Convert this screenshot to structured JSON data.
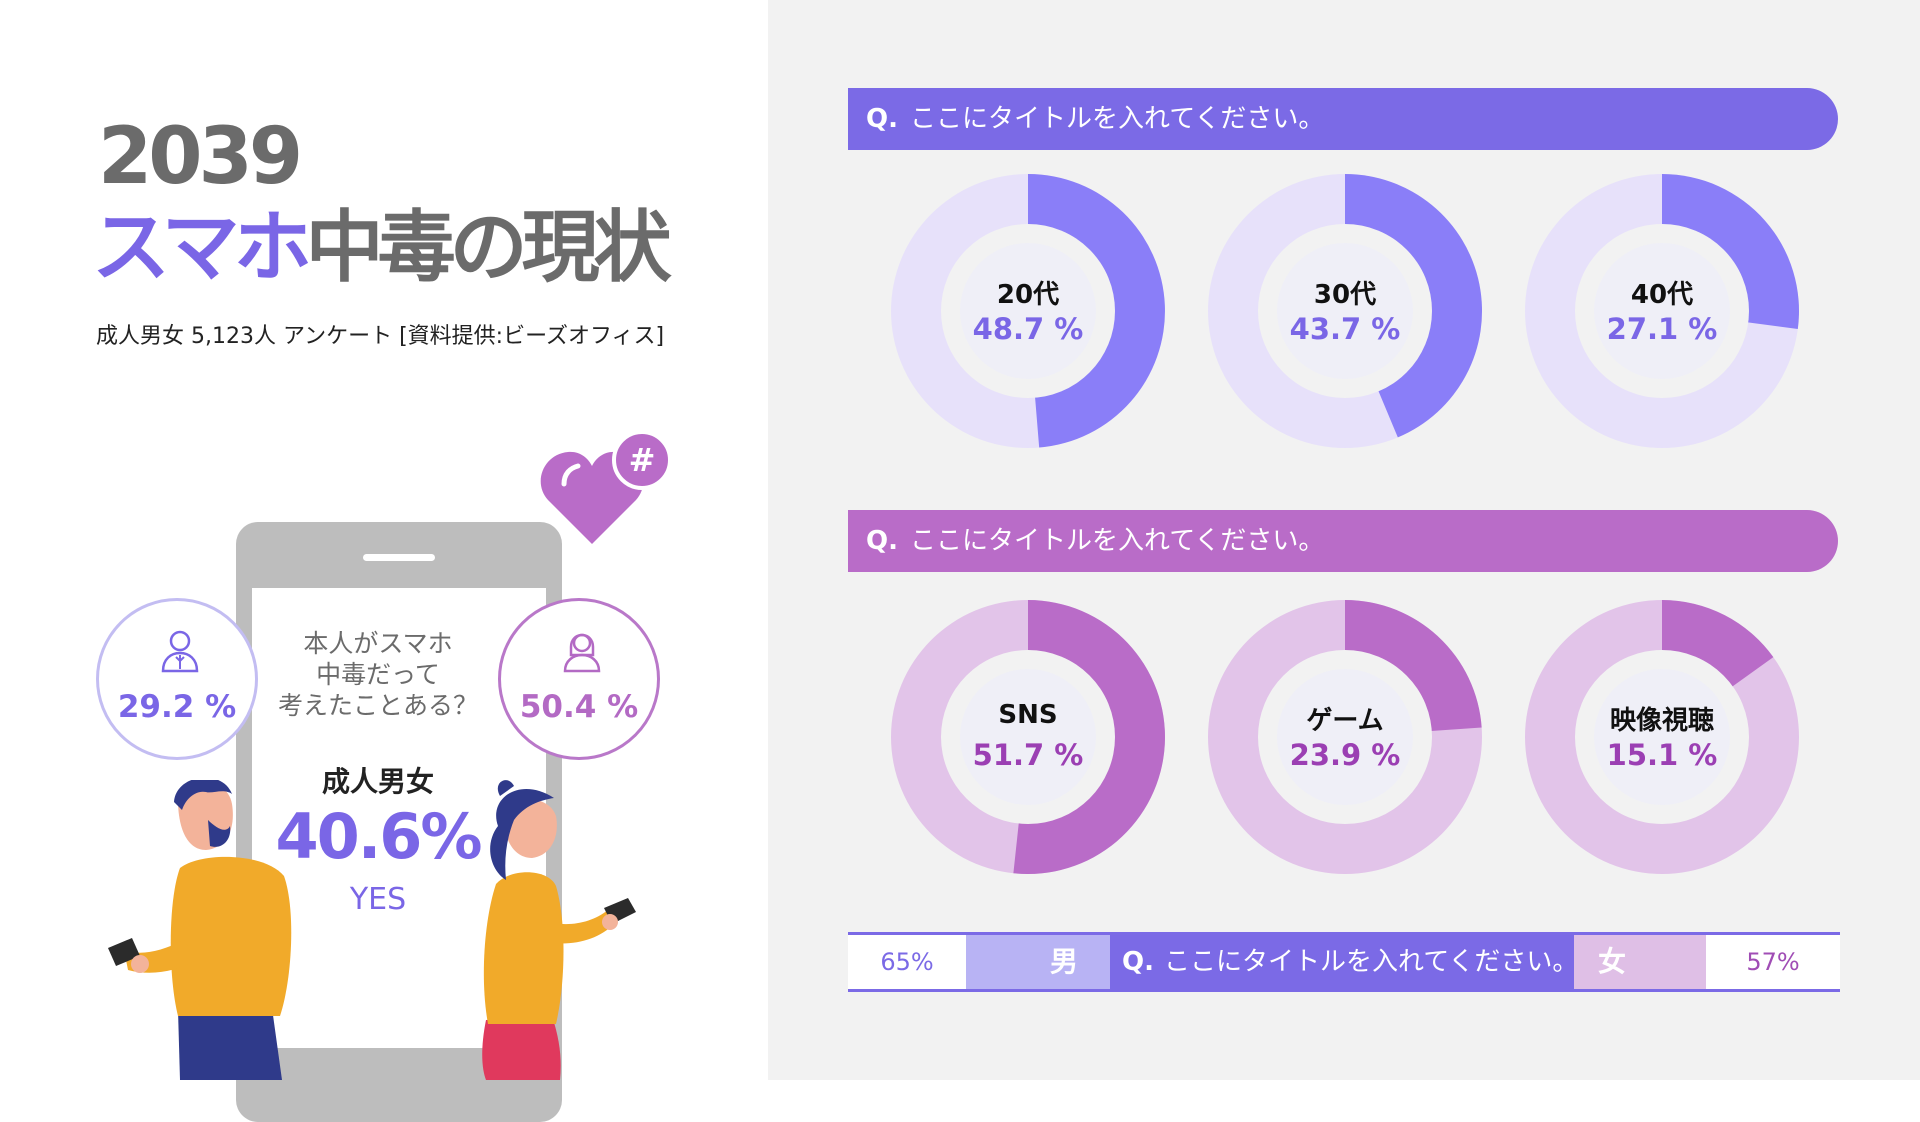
{
  "header": {
    "year": "2039",
    "title_accent": "スマホ",
    "title_rest": "中毒の現状",
    "subtitle": "成人男女 5,123人 アンケート [資料提供:ビーズオフィス]"
  },
  "illustration": {
    "question": [
      "本人がスマホ",
      "中毒だって",
      "考えたことある？"
    ],
    "adult_label": "成人男女",
    "adult_value": "40.6%",
    "yes_label": "YES",
    "male_value": "29.2 %",
    "female_value": "50.4 %",
    "heart_symbol": "#"
  },
  "colors": {
    "purple": "#7b6ae6",
    "purple_light": "#e7e1fa",
    "purple_arc": "#8a7ef8",
    "violet": "#b96cc8",
    "violet_light": "#e2c4e9",
    "inner_disc": "#efeff7",
    "male_value_text": "#7a66e6",
    "female_value_text": "#9b3fb3"
  },
  "chart_data": [
    {
      "type": "pie",
      "title": "Q. ここにタイトルを入れてください。",
      "q_mark": "Q.",
      "title_text": "ここにタイトルを入れてください。",
      "categories": [
        "20代",
        "30代",
        "40代"
      ],
      "values": [
        48.7,
        43.7,
        27.1
      ],
      "value_labels": [
        "48.7 %",
        "43.7 %",
        "27.1 %"
      ]
    },
    {
      "type": "pie",
      "title": "Q. ここにタイトルを入れてください。",
      "q_mark": "Q.",
      "title_text": "ここにタイトルを入れてください。",
      "categories": [
        "SNS",
        "ゲーム",
        "映像視聴"
      ],
      "values": [
        51.7,
        23.9,
        15.1
      ],
      "value_labels": [
        "51.7 %",
        "23.9 %",
        "15.1 %"
      ]
    },
    {
      "type": "bar",
      "title": "Q. ここにタイトルを入れてください。",
      "q_mark": "Q.",
      "title_text": "ここにタイトルを入れてください。",
      "categories": [
        "男",
        "女"
      ],
      "values": [
        65,
        57
      ],
      "value_labels": [
        "65%",
        "57%"
      ]
    }
  ]
}
